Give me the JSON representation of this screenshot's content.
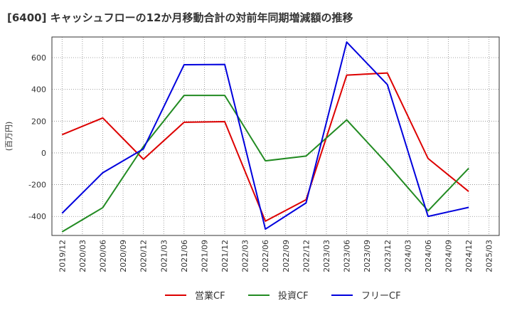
{
  "chart_data": {
    "type": "line",
    "title": "[6400]  キャッシュフローの12か月移動合計の対前年同期増減額の推移",
    "ylabel": "(百万円)",
    "xlabel": "",
    "ylim": [
      -520,
      730
    ],
    "yticks": [
      -400,
      -200,
      0,
      200,
      400,
      600
    ],
    "x_ticks": [
      "2019/12",
      "2020/03",
      "2020/06",
      "2020/09",
      "2020/12",
      "2021/03",
      "2021/06",
      "2021/09",
      "2021/12",
      "2022/03",
      "2022/06",
      "2022/09",
      "2022/12",
      "2023/03",
      "2023/06",
      "2023/09",
      "2023/12",
      "2024/03",
      "2024/06",
      "2024/09",
      "2024/12",
      "2025/03"
    ],
    "grid": true,
    "legend_position": "bottom",
    "series": [
      {
        "name": "営業CF",
        "color": "#dd0000",
        "points": [
          {
            "x": "2019/12",
            "y": 115
          },
          {
            "x": "2020/06",
            "y": 220
          },
          {
            "x": "2020/12",
            "y": -40
          },
          {
            "x": "2021/06",
            "y": 193
          },
          {
            "x": "2021/12",
            "y": 197
          },
          {
            "x": "2022/06",
            "y": -430
          },
          {
            "x": "2022/12",
            "y": -295
          },
          {
            "x": "2023/06",
            "y": 490
          },
          {
            "x": "2023/12",
            "y": 503
          },
          {
            "x": "2024/06",
            "y": -35
          },
          {
            "x": "2024/12",
            "y": -243
          }
        ]
      },
      {
        "name": "投資CF",
        "color": "#228b22",
        "points": [
          {
            "x": "2019/12",
            "y": -497
          },
          {
            "x": "2020/06",
            "y": -345
          },
          {
            "x": "2020/12",
            "y": 40
          },
          {
            "x": "2021/06",
            "y": 362
          },
          {
            "x": "2021/12",
            "y": 362
          },
          {
            "x": "2022/06",
            "y": -50
          },
          {
            "x": "2022/12",
            "y": -20
          },
          {
            "x": "2023/06",
            "y": 208
          },
          {
            "x": "2023/12",
            "y": -70
          },
          {
            "x": "2024/06",
            "y": -365
          },
          {
            "x": "2024/12",
            "y": -97
          }
        ]
      },
      {
        "name": "フリーCF",
        "color": "#0000dd",
        "points": [
          {
            "x": "2019/12",
            "y": -380
          },
          {
            "x": "2020/06",
            "y": -125
          },
          {
            "x": "2020/12",
            "y": 25
          },
          {
            "x": "2021/06",
            "y": 555
          },
          {
            "x": "2021/12",
            "y": 557
          },
          {
            "x": "2022/06",
            "y": -480
          },
          {
            "x": "2022/12",
            "y": -315
          },
          {
            "x": "2023/06",
            "y": 698
          },
          {
            "x": "2023/12",
            "y": 430
          },
          {
            "x": "2024/06",
            "y": -400
          },
          {
            "x": "2024/12",
            "y": -343
          }
        ]
      }
    ]
  }
}
